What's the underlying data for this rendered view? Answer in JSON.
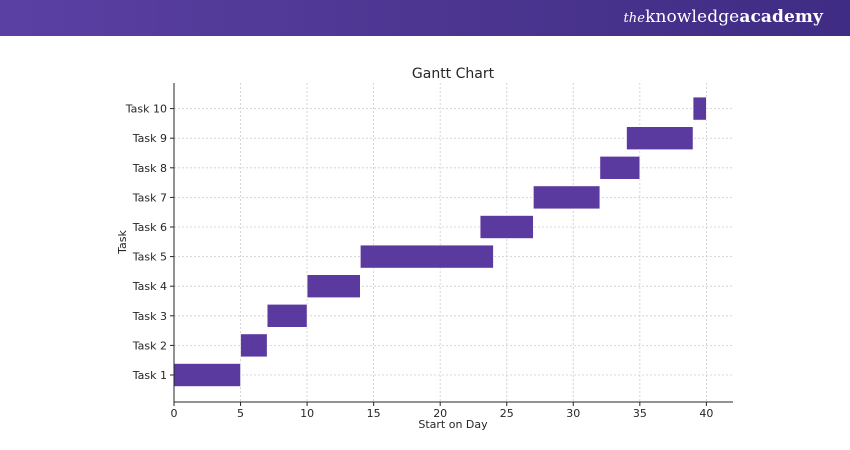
{
  "brand": {
    "prefix": "the",
    "name_regular": "knowledge",
    "name_bold": "academy"
  },
  "colors": {
    "header": "#4b3590",
    "bar": "#5b3aa0"
  },
  "chart_data": {
    "type": "bar",
    "orientation": "horizontal-gantt",
    "title": "Gantt Chart",
    "xlabel": "Start on Day",
    "ylabel": "Task",
    "xlim": [
      0,
      42
    ],
    "xticks": [
      0,
      5,
      10,
      15,
      20,
      25,
      30,
      35,
      40
    ],
    "grid": true,
    "categories": [
      "Task 1",
      "Task 2",
      "Task 3",
      "Task 4",
      "Task 5",
      "Task 6",
      "Task 7",
      "Task 8",
      "Task 9",
      "Task 10"
    ],
    "series": [
      {
        "starts": [
          0,
          5,
          7,
          10,
          14,
          23,
          27,
          32,
          34,
          39
        ],
        "durations": [
          5,
          2,
          3,
          4,
          10,
          4,
          5,
          3,
          5,
          1
        ]
      }
    ]
  }
}
